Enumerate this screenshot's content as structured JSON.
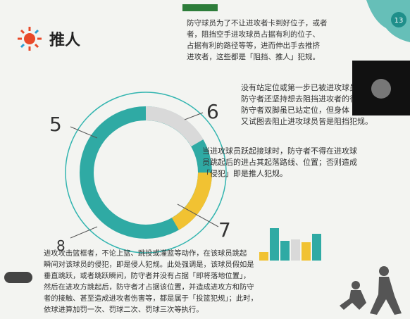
{
  "slide": {
    "title": "推人",
    "page_number": "13",
    "ring_labels": [
      "5",
      "6",
      "7",
      "8"
    ],
    "paragraphs": [
      {
        "lines": [
          "防守球员为了不让进攻者卡到好位子，或者",
          "者，阻挡空手进攻球员占据有利的位子、",
          "占据有利的路径等等，进而伸出手去推挤",
          "进攻者，这些都是「阻挡、推人」犯规。"
        ]
      },
      {
        "lines": [
          "没有站定位或第一步已被进攻球员先占",
          "防守者还坚持想去阻挡进攻者的行进方向",
          "防守者双脚虽已站定位，但身体「上半身」前倾，",
          "又试图去阻止进攻球员皆是阻挡犯规。"
        ]
      },
      {
        "lines": [
          "当进攻球员跃起接球时，防守者不得在进攻球",
          "员跳起后的进占其起落路线、位置；否则造成",
          "「侵犯」即是推人犯规。"
        ]
      },
      {
        "lines": [
          "进攻攻击篮框者，不论上篮、跳投或灌篮等动作，在该球员跳起",
          "瞬间对该球员的侵犯，即是侵人犯规。此处强调是，该球员假如是",
          "垂直跳跃，或者跳跃瞬间，防守者并没有占据「即将落地位置」，",
          "然后在进攻方跳起后，防守者才占据该位置，并造成进攻方和防守",
          "者的接触、甚至造成进攻者伤害等，都是属于「投篮犯规」；此时，",
          "依球进算加罚一次、罚球二次、罚球三次等执行。"
        ]
      }
    ]
  }
}
